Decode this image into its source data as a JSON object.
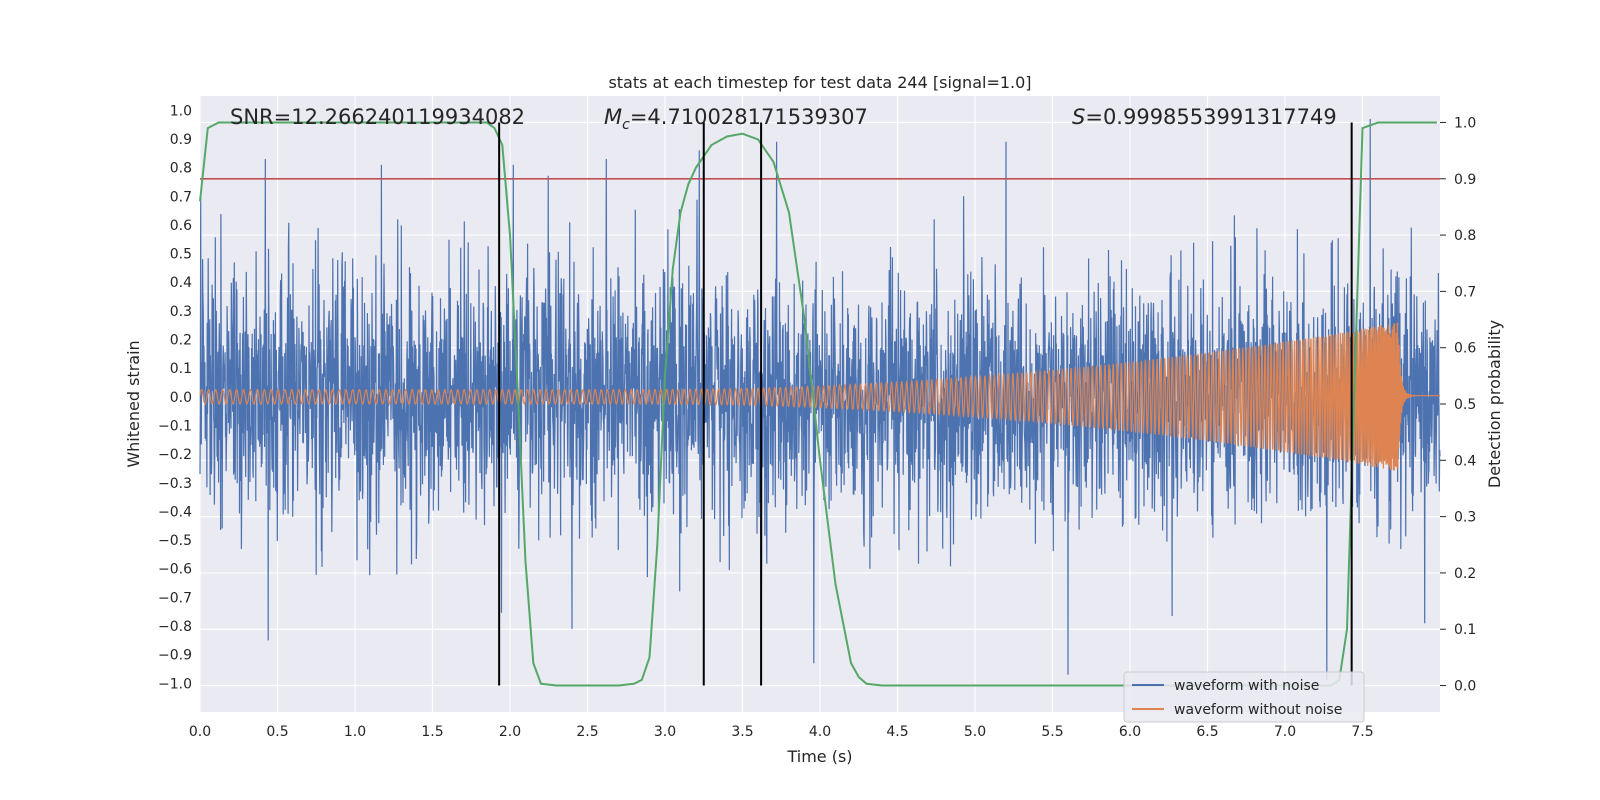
{
  "chart_data": {
    "type": "line",
    "title": "stats at each timestep for test data 244 [signal=1.0]",
    "xlabel": "Time (s)",
    "ylabel": "Whitened strain",
    "y2label": "Detection probability",
    "xlim": [
      0.0,
      8.0
    ],
    "ylim": [
      -1.1,
      1.05
    ],
    "y2lim": [
      -0.047,
      1.047
    ],
    "xticks": [
      "0.0",
      "0.5",
      "1.0",
      "1.5",
      "2.0",
      "2.5",
      "3.0",
      "3.5",
      "4.0",
      "4.5",
      "5.0",
      "5.5",
      "6.0",
      "6.5",
      "7.0",
      "7.5"
    ],
    "yticks": [
      "1.0",
      "0.9",
      "0.8",
      "0.7",
      "0.6",
      "0.5",
      "0.4",
      "0.3",
      "0.2",
      "0.1",
      "0.0",
      "−0.1",
      "−0.2",
      "−0.3",
      "−0.4",
      "−0.5",
      "−0.6",
      "−0.7",
      "−0.8",
      "−0.9",
      "−1.0"
    ],
    "y2ticks": [
      "1.0",
      "0.9",
      "0.8",
      "0.7",
      "0.6",
      "0.5",
      "0.4",
      "0.3",
      "0.2",
      "0.1",
      "0.0"
    ],
    "grid": true,
    "legend_position": "lower-right",
    "annotations": {
      "snr": "SNR=12.266240119934082",
      "mc_symbol": "M",
      "mc_sub": "c",
      "mc_value": "=4.710028171539307",
      "s_symbol": "S",
      "s_value": "=0.9998553991317749"
    },
    "threshold_line": {
      "axis": "right",
      "value": 0.9,
      "color": "#c44e52"
    },
    "vertical_lines": [
      1.93,
      3.25,
      3.62,
      7.43
    ],
    "series": [
      {
        "name": "waveform with noise",
        "color": "#4c72b0",
        "axis": "left",
        "kind": "noise",
        "envelope_p95": 0.42,
        "peaks": [
          [
            0.42,
            0.83
          ],
          [
            1.17,
            0.81
          ],
          [
            2.02,
            0.81
          ],
          [
            2.62,
            0.83
          ],
          [
            3.22,
            0.86
          ],
          [
            3.72,
            0.89
          ],
          [
            5.2,
            0.89
          ],
          [
            7.55,
            0.97
          ],
          [
            0.44,
            -0.85
          ],
          [
            2.4,
            -0.81
          ],
          [
            3.62,
            -0.75
          ],
          [
            3.96,
            -0.93
          ],
          [
            5.6,
            -0.97
          ],
          [
            7.27,
            -0.99
          ],
          [
            7.9,
            -0.79
          ]
        ]
      },
      {
        "name": "waveform without noise",
        "color": "#dd8452",
        "axis": "left",
        "kind": "chirp",
        "t_merge": 7.73,
        "amp_start": 0.025,
        "amp_peak": 0.26
      },
      {
        "name": "detection probability",
        "color": "#55a868",
        "axis": "right",
        "x": [
          0.0,
          0.05,
          0.12,
          0.2,
          0.4,
          1.0,
          1.5,
          1.85,
          1.9,
          1.95,
          2.0,
          2.05,
          2.1,
          2.15,
          2.2,
          2.3,
          2.5,
          2.7,
          2.8,
          2.85,
          2.9,
          2.95,
          3.0,
          3.05,
          3.1,
          3.15,
          3.2,
          3.3,
          3.4,
          3.5,
          3.6,
          3.7,
          3.8,
          3.9,
          4.0,
          4.1,
          4.2,
          4.25,
          4.3,
          4.4,
          5.0,
          6.0,
          7.0,
          7.3,
          7.35,
          7.4,
          7.45,
          7.5,
          7.6,
          7.98
        ],
        "y": [
          0.86,
          0.99,
          1.0,
          1.0,
          1.0,
          1.0,
          1.0,
          1.0,
          0.99,
          0.96,
          0.8,
          0.52,
          0.22,
          0.04,
          0.003,
          0.0,
          0.0,
          0.0,
          0.003,
          0.01,
          0.05,
          0.25,
          0.55,
          0.74,
          0.84,
          0.89,
          0.92,
          0.96,
          0.975,
          0.98,
          0.97,
          0.93,
          0.84,
          0.65,
          0.4,
          0.18,
          0.04,
          0.015,
          0.003,
          0.0,
          0.0,
          0.0,
          0.0,
          0.0,
          0.01,
          0.1,
          0.55,
          0.99,
          1.0,
          1.0
        ]
      }
    ]
  }
}
